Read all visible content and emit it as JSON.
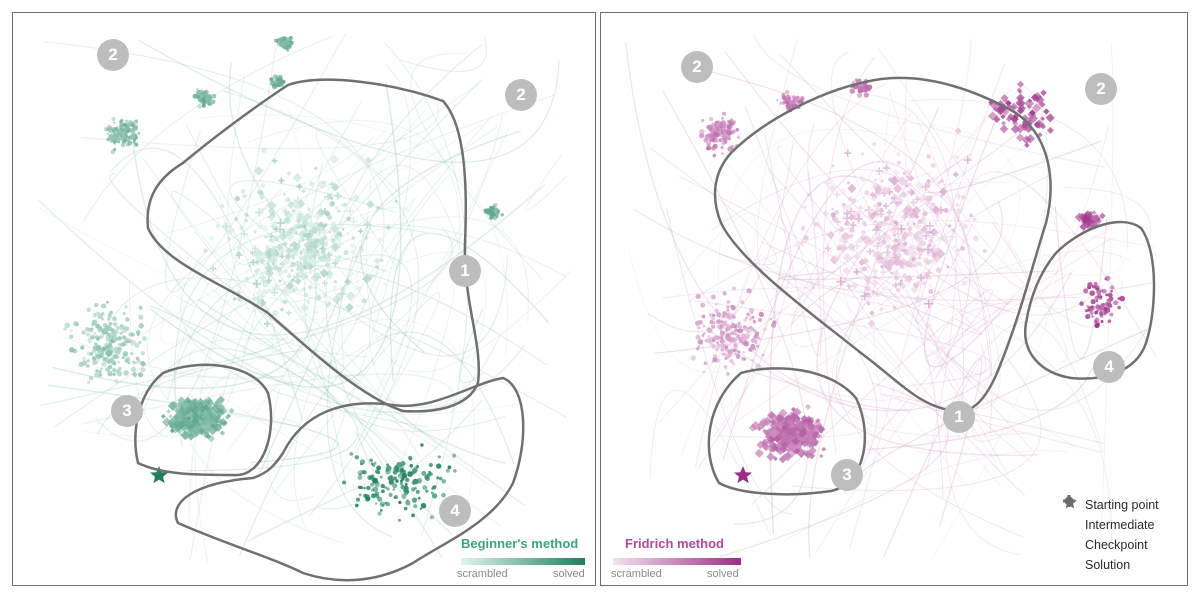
{
  "chart_data": [
    {
      "type": "scatter",
      "title": "Beginner's method",
      "color_scale": {
        "low_label": "scrambled",
        "high_label": "solved",
        "low_color": "#e2f4ee",
        "high_color": "#1d7f5f"
      },
      "accent_color": "#4dbd97",
      "regions": [
        {
          "id": "1",
          "label": "1"
        },
        {
          "id": "2",
          "label": "2"
        },
        {
          "id": "3",
          "label": "3"
        },
        {
          "id": "4",
          "label": "4"
        }
      ]
    },
    {
      "type": "scatter",
      "title": "Fridrich method",
      "color_scale": {
        "low_label": "scrambled",
        "high_label": "solved",
        "low_color": "#f6e1f0",
        "high_color": "#9c2d86"
      },
      "accent_color": "#cc66b8",
      "regions": [
        {
          "id": "1",
          "label": "1"
        },
        {
          "id": "2",
          "label": "2"
        },
        {
          "id": "3",
          "label": "3"
        },
        {
          "id": "4",
          "label": "4"
        }
      ]
    }
  ],
  "legend": {
    "items": [
      {
        "label": "Starting point",
        "icon": "plus-icon"
      },
      {
        "label": "Intermediate",
        "icon": "circle-icon"
      },
      {
        "label": "Checkpoint",
        "icon": "diamond-icon"
      },
      {
        "label": "Solution",
        "icon": "star-icon"
      }
    ],
    "color": "#6b6b6b"
  }
}
